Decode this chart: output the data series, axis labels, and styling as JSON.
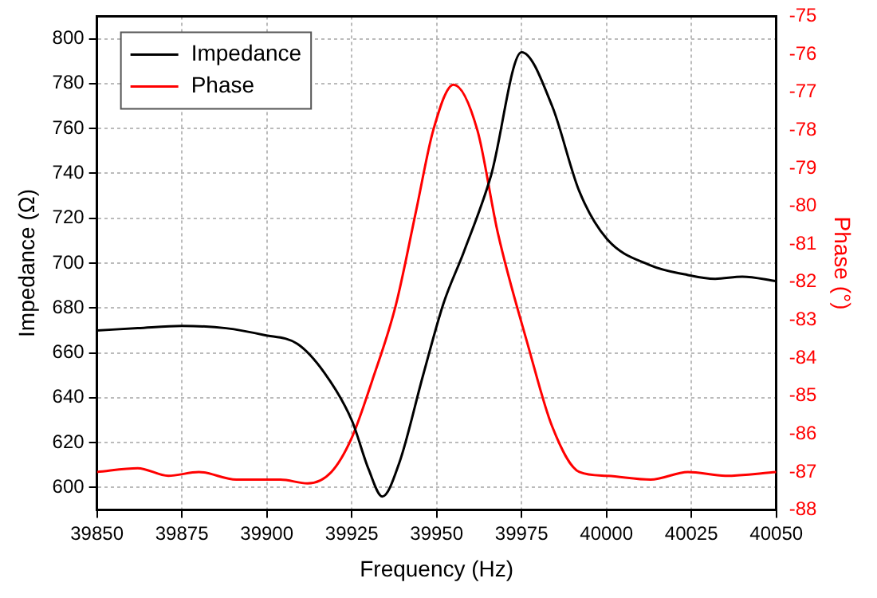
{
  "chart_data": {
    "type": "line",
    "xlabel": "Frequency (Hz)",
    "ylabel": "Impedance (Ω)",
    "y2label": "Phase (°)",
    "xlim": [
      39850,
      40050
    ],
    "xticks": [
      39850,
      39875,
      39900,
      39925,
      39950,
      39975,
      40000,
      40025,
      40050
    ],
    "ylim": [
      590,
      810
    ],
    "yticks": [
      600,
      620,
      640,
      660,
      680,
      700,
      720,
      740,
      760,
      780,
      800
    ],
    "y2lim": [
      -88,
      -75
    ],
    "y2ticks": [
      -88,
      -87,
      -86,
      -85,
      -84,
      -83,
      -82,
      -81,
      -80,
      -79,
      -78,
      -77,
      -76,
      -75
    ],
    "grid": true,
    "legend": "top left",
    "line_style": "solid",
    "marker": "none",
    "series": [
      {
        "name": "Impedance",
        "color": "#000000",
        "x": [
          39850,
          39862,
          39875,
          39888,
          39899,
          39909,
          39917,
          39925,
          39930,
          39934,
          39939,
          39946,
          39952,
          39958,
          39966,
          39975,
          39984,
          39992,
          40000,
          40013,
          40023,
          40032,
          40040,
          40050
        ],
        "values": [
          670,
          671,
          672,
          671,
          668,
          664,
          651,
          630,
          608,
          596,
          611,
          650,
          682,
          705,
          739,
          794,
          770,
          732,
          711,
          699,
          695,
          693,
          694,
          692
        ]
      },
      {
        "name": "Phase",
        "color": "#ff0000",
        "axis": "y2",
        "x": [
          39850,
          39862,
          39871,
          39880,
          39891,
          39904,
          39912,
          39919,
          39925,
          39931,
          39938,
          39944,
          39949,
          39955,
          39962,
          39968,
          39977,
          39984,
          39992,
          40000,
          40013,
          40024,
          40035,
          40050
        ],
        "values": [
          -87.0,
          -86.9,
          -87.1,
          -87.0,
          -87.2,
          -87.2,
          -87.3,
          -87.0,
          -86.1,
          -84.6,
          -82.6,
          -80.1,
          -78.0,
          -76.8,
          -78.0,
          -80.7,
          -83.7,
          -85.8,
          -87.0,
          -87.1,
          -87.2,
          -87.0,
          -87.1,
          -87.0
        ]
      }
    ]
  }
}
